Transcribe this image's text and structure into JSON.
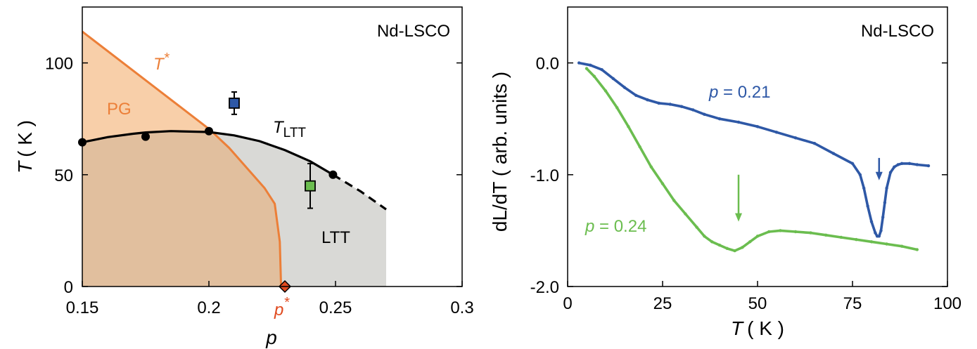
{
  "chart_data": [
    {
      "type": "scatter",
      "panel": "left",
      "title": "",
      "corner_label": "Nd-LSCO",
      "xlabel": "p",
      "ylabel_main": "T",
      "ylabel_unit": "( K )",
      "xlim": [
        0.15,
        0.3
      ],
      "ylim": [
        0,
        125
      ],
      "xticks": [
        0.15,
        0.2,
        0.25,
        0.3
      ],
      "xtick_labels": [
        "0.15",
        "0.2",
        "0.25",
        "0.3"
      ],
      "yticks": [
        0,
        50,
        100
      ],
      "ytick_labels": [
        "0",
        "50",
        "100"
      ],
      "grid": false,
      "colors": {
        "pseudogap_fill": "#f8cfa9",
        "ltt_fill": "#d9d9d6",
        "overlap_fill": "#e1bf9e",
        "tstar_line": "#ec7f38",
        "pstar_label": "#e04a1f",
        "ltt_line": "#000000",
        "blue_square": "#2e58a6",
        "green_square": "#6bbd4f"
      },
      "labels": {
        "tstar": "T",
        "tstar_sup": "*",
        "pg": "PG",
        "tltt": "T",
        "tltt_sub": "LTT",
        "ltt": "LTT",
        "pstar": "p",
        "pstar_sup": "*"
      },
      "tstar_line": {
        "x": [
          0.15,
          0.2,
          0.208,
          0.215,
          0.222,
          0.226,
          0.228,
          0.2285
        ],
        "y": [
          114,
          70.5,
          62,
          53,
          44,
          37,
          20,
          0
        ]
      },
      "ltt_line_solid": {
        "x": [
          0.15,
          0.16,
          0.17,
          0.175,
          0.185,
          0.2,
          0.21,
          0.22,
          0.23,
          0.24,
          0.249
        ],
        "y": [
          64.5,
          66.8,
          68.3,
          68.9,
          69.5,
          69.1,
          67.6,
          65,
          61,
          56,
          50
        ]
      },
      "ltt_line_dashed": {
        "x": [
          0.249,
          0.26,
          0.27
        ],
        "y": [
          50,
          42.5,
          34.5
        ]
      },
      "ltt_points": {
        "x": [
          0.15,
          0.175,
          0.2,
          0.249
        ],
        "y": [
          64.5,
          67,
          69.5,
          50
        ]
      },
      "squares": [
        {
          "x": 0.21,
          "y": 82,
          "err": 5,
          "color": "blue"
        },
        {
          "x": 0.24,
          "y": 45,
          "err": 10,
          "color": "green"
        }
      ],
      "pstar_marker": {
        "x": 0.23,
        "y": 0
      }
    },
    {
      "type": "line",
      "panel": "right",
      "title": "",
      "corner_label": "Nd-LSCO",
      "xlabel_main": "T",
      "xlabel_unit": "( K )",
      "ylabel": "dL/dT ( arb. units )",
      "xlim": [
        0,
        100
      ],
      "ylim": [
        -2.0,
        0.5
      ],
      "xticks": [
        0,
        25,
        50,
        75,
        100
      ],
      "xtick_labels": [
        "0",
        "25",
        "50",
        "75",
        "100"
      ],
      "yticks": [
        0,
        -1,
        -2
      ],
      "ytick_labels": [
        "0.0",
        "-1.0",
        "-2.0"
      ],
      "grid": false,
      "series": [
        {
          "name": "p = 0.21",
          "label_p": "p",
          "label_rest": " = 0.21",
          "color": "#2e58a6",
          "x": [
            3,
            6,
            9,
            12,
            15,
            18,
            21,
            24,
            27,
            30,
            33,
            36,
            40,
            45,
            50,
            55,
            60,
            65,
            70,
            75,
            77,
            78,
            79,
            80,
            81,
            81.5,
            82,
            82.5,
            83,
            83.5,
            84,
            85,
            86,
            87,
            88,
            90,
            92,
            95
          ],
          "y": [
            0,
            -0.02,
            -0.06,
            -0.14,
            -0.22,
            -0.29,
            -0.33,
            -0.36,
            -0.37,
            -0.39,
            -0.42,
            -0.46,
            -0.5,
            -0.53,
            -0.57,
            -0.62,
            -0.67,
            -0.72,
            -0.81,
            -0.9,
            -1.0,
            -1.12,
            -1.28,
            -1.42,
            -1.52,
            -1.55,
            -1.55,
            -1.5,
            -1.38,
            -1.25,
            -1.12,
            -0.98,
            -0.93,
            -0.91,
            -0.9,
            -0.9,
            -0.91,
            -0.92
          ]
        },
        {
          "name": "p = 0.24",
          "label_p": "p",
          "label_rest": " = 0.24",
          "color": "#6bbd4f",
          "x": [
            5,
            7,
            10,
            13,
            16,
            19,
            22,
            25,
            28,
            31,
            34,
            36,
            38,
            40,
            42,
            44,
            46,
            48,
            50,
            53,
            56,
            60,
            64,
            68,
            72,
            76,
            80,
            84,
            88,
            92
          ],
          "y": [
            -0.05,
            -0.12,
            -0.25,
            -0.4,
            -0.57,
            -0.75,
            -0.93,
            -1.08,
            -1.23,
            -1.35,
            -1.47,
            -1.55,
            -1.6,
            -1.63,
            -1.66,
            -1.68,
            -1.65,
            -1.6,
            -1.55,
            -1.51,
            -1.5,
            -1.51,
            -1.52,
            -1.54,
            -1.56,
            -1.58,
            -1.6,
            -1.62,
            -1.64,
            -1.67
          ]
        }
      ],
      "arrows": [
        {
          "x": 45,
          "y_from": -1.0,
          "y_to": -1.42,
          "series": "p = 0.24"
        },
        {
          "x": 82,
          "y_from": -0.85,
          "y_to": -1.05,
          "series": "p = 0.21"
        }
      ]
    }
  ]
}
